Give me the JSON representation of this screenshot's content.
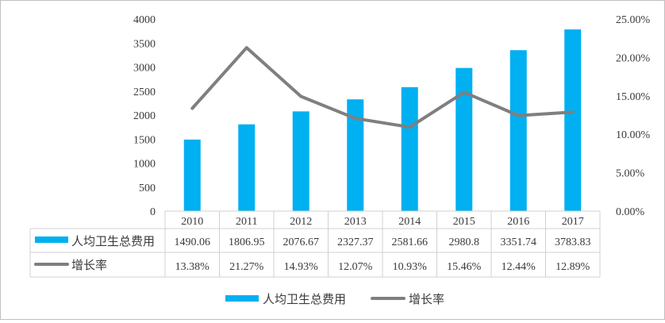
{
  "chart_data": {
    "type": "bar",
    "categories": [
      "2010",
      "2011",
      "2012",
      "2013",
      "2014",
      "2015",
      "2016",
      "2017"
    ],
    "series": [
      {
        "name": "人均卫生总费用",
        "type": "bar",
        "axis": "left",
        "values": [
          1490.06,
          1806.95,
          2076.67,
          2327.37,
          2581.66,
          2980.8,
          3351.74,
          3783.83
        ],
        "labels": [
          "1490.06",
          "1806.95",
          "2076.67",
          "2327.37",
          "2581.66",
          "2980.8",
          "3351.74",
          "3783.83"
        ],
        "color": "#00b0f0"
      },
      {
        "name": "增长率",
        "type": "line",
        "axis": "right",
        "values": [
          13.38,
          21.27,
          14.93,
          12.07,
          10.93,
          15.46,
          12.44,
          12.89
        ],
        "labels": [
          "13.38%",
          "21.27%",
          "14.93%",
          "12.07%",
          "10.93%",
          "15.46%",
          "12.44%",
          "12.89%"
        ],
        "color": "#7f7f7f"
      }
    ],
    "y_left": {
      "ylim": [
        0,
        4000
      ],
      "ticks": [
        "0",
        "500",
        "1000",
        "1500",
        "2000",
        "2500",
        "3000",
        "3500",
        "4000"
      ]
    },
    "y_right": {
      "ylim": [
        0,
        25
      ],
      "ticks": [
        "0.00%",
        "5.00%",
        "10.00%",
        "15.00%",
        "20.00%",
        "25.00%"
      ]
    },
    "grid": false,
    "data_table": true,
    "legend": "bottom-center"
  }
}
